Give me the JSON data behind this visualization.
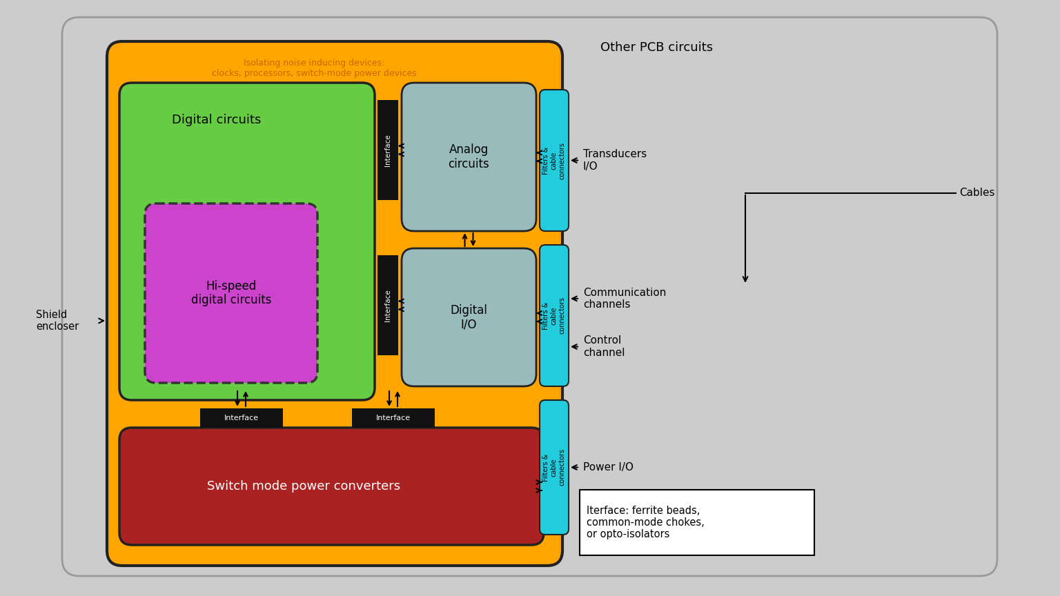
{
  "bg_color": "#CCCCCC",
  "outer_box_color": "#FFA500",
  "outer_box_edge": "#222222",
  "green_box_color": "#66CC44",
  "green_box_edge": "#222222",
  "red_box_color": "#AA2222",
  "red_box_edge": "#222222",
  "purple_box_color": "#CC44CC",
  "purple_box_edge": "#333333",
  "gray_box_color": "#99BBBB",
  "gray_box_edge": "#222222",
  "cyan_box_color": "#22CCDD",
  "cyan_box_edge": "#222222",
  "black_box_color": "#111111",
  "white_box_color": "#FFFFFF",
  "note_title_line1": "Isolating noise inducing devices:",
  "note_title_line2": "clocks, processors, switch-mode power devices",
  "other_pcb_label": "Other PCB circuits",
  "shield_label": "Shield\nencloser",
  "cables_label": "Cables",
  "digital_label": "Digital circuits",
  "hispeed_label": "Hi-speed\ndigital circuits",
  "analog_label": "Analog\ncircuits",
  "digital_io_label": "Digital\nI/O",
  "power_label": "Switch mode power converters",
  "interface_label": "Interface",
  "filters_label": "Filters &\ncable\nconnectors",
  "transducers_label": "Transducers\nI/O",
  "comm_label": "Communication\nchannels",
  "control_label": "Control\nchannel",
  "power_io_label": "Power I/O",
  "note_box_label": "Iterface: ferrite beads,\ncommon-mode chokes,\nor opto-isolators"
}
